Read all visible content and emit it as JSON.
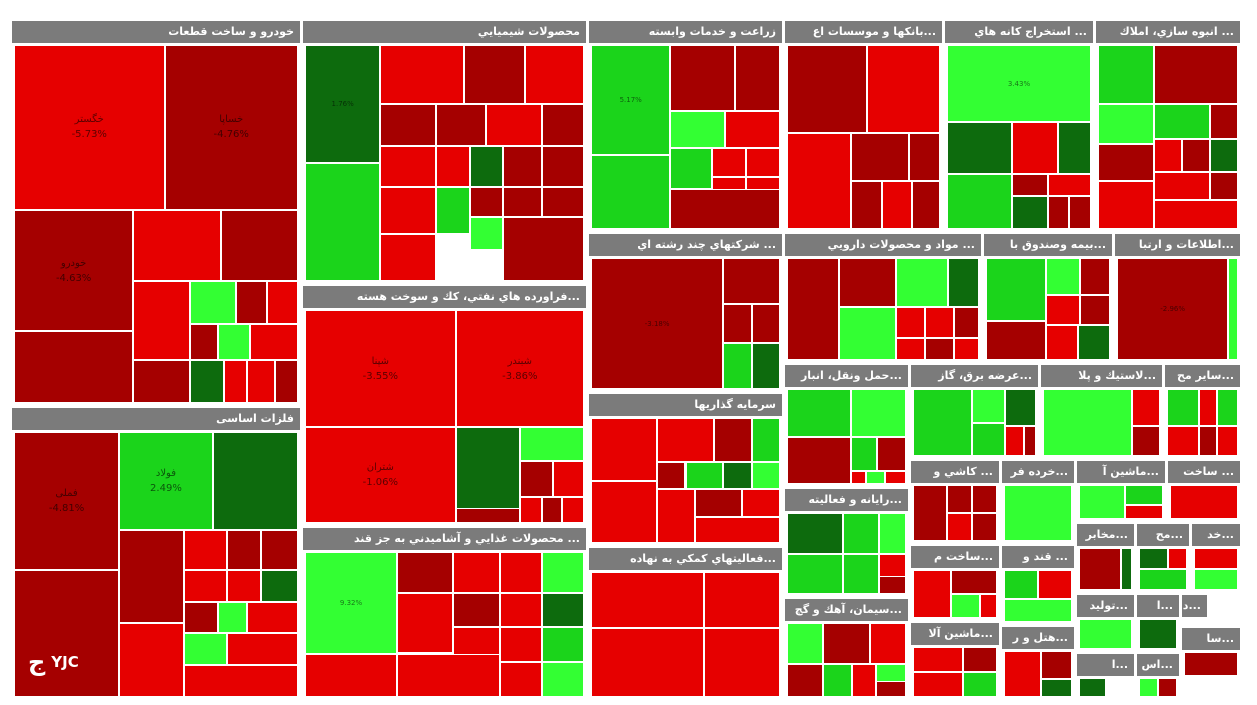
{
  "chart_data": {
    "type": "treemap",
    "colors": {
      "dark_red": "#a50000",
      "red": "#e60000",
      "bright_red": "#ff0000",
      "green": "#1bd41b",
      "bright_green": "#33ff33",
      "dark_green": "#0d6b0d"
    },
    "sectors": [
      {
        "label": "خودرو و ساخت قطعات",
        "cells": [
          {
            "c": "red",
            "label": "خگستر",
            "value": "-5.73%"
          },
          {
            "c": "dark_red",
            "label": "خساپا",
            "value": "-4.76%"
          },
          {
            "c": "dark_red",
            "label": "خودرو",
            "value": "-4.63%"
          },
          {
            "c": "red"
          },
          {
            "c": "dark_red"
          },
          {
            "c": "dark_red"
          },
          {
            "c": "red"
          },
          {
            "c": "bright_green"
          },
          {
            "c": "dark_red"
          },
          {
            "c": "red"
          },
          {
            "c": "dark_red"
          },
          {
            "c": "bright_green"
          },
          {
            "c": "red"
          },
          {
            "c": "dark_red"
          },
          {
            "c": "dark_green"
          },
          {
            "c": "red"
          },
          {
            "c": "red"
          },
          {
            "c": "dark_red"
          }
        ]
      },
      {
        "label": "فلزات اساسی",
        "cells": [
          {
            "c": "dark_red",
            "label": "فملی",
            "value": "-4.81%"
          },
          {
            "c": "green",
            "label": "فولاد",
            "value": "2.49%"
          },
          {
            "c": "dark_green"
          },
          {
            "c": "dark_red"
          },
          {
            "c": "dark_red"
          },
          {
            "c": "red"
          },
          {
            "c": "dark_red"
          },
          {
            "c": "dark_red"
          },
          {
            "c": "red"
          },
          {
            "c": "red"
          },
          {
            "c": "dark_green"
          },
          {
            "c": "dark_red"
          },
          {
            "c": "bright_green"
          },
          {
            "c": "red"
          },
          {
            "c": "red"
          },
          {
            "c": "bright_green"
          },
          {
            "c": "red"
          },
          {
            "c": "red"
          }
        ]
      },
      {
        "label": "محصولات شيميايي",
        "cells": [
          {
            "c": "dark_green",
            "value": "1.76%"
          },
          {
            "c": "red"
          },
          {
            "c": "dark_red"
          },
          {
            "c": "red"
          },
          {
            "c": "green"
          },
          {
            "c": "dark_red"
          },
          {
            "c": "dark_red"
          },
          {
            "c": "red"
          },
          {
            "c": "dark_red"
          },
          {
            "c": "red"
          },
          {
            "c": "red"
          },
          {
            "c": "dark_green"
          },
          {
            "c": "dark_red"
          },
          {
            "c": "dark_red"
          },
          {
            "c": "red"
          },
          {
            "c": "green"
          },
          {
            "c": "dark_red"
          },
          {
            "c": "dark_red"
          },
          {
            "c": "dark_red"
          },
          {
            "c": "red"
          },
          {
            "c": "bright_green"
          },
          {
            "c": "dark_red"
          }
        ]
      },
      {
        "label": "...فراورده هاي نفتي، كك و سوخت هسته",
        "cells": [
          {
            "c": "red",
            "label": "شپنا",
            "value": "-3.55%"
          },
          {
            "c": "red",
            "label": "شبندر",
            "value": "-3.86%"
          },
          {
            "c": "red",
            "label": "شتران",
            "value": "-1.06%"
          },
          {
            "c": "dark_green"
          },
          {
            "c": "bright_green"
          },
          {
            "c": "dark_red"
          },
          {
            "c": "red"
          },
          {
            "c": "red"
          },
          {
            "c": "dark_red"
          },
          {
            "c": "red"
          },
          {
            "c": "dark_red"
          }
        ]
      },
      {
        "label": "... محصولات غذايي و آشاميدني به جز قند",
        "cells": [
          {
            "c": "bright_green",
            "value": "9.32%"
          },
          {
            "c": "dark_red"
          },
          {
            "c": "red"
          },
          {
            "c": "red"
          },
          {
            "c": "bright_green"
          },
          {
            "c": "red"
          },
          {
            "c": "red"
          },
          {
            "c": "dark_red"
          },
          {
            "c": "red"
          },
          {
            "c": "dark_green"
          },
          {
            "c": "green"
          },
          {
            "c": "red"
          },
          {
            "c": "red"
          },
          {
            "c": "bright_green"
          },
          {
            "c": "red"
          },
          {
            "c": "red"
          }
        ]
      },
      {
        "label": "زراعت و خدمات وابسته",
        "cells": [
          {
            "c": "green",
            "value": "5.17%"
          },
          {
            "c": "dark_red"
          },
          {
            "c": "dark_red"
          },
          {
            "c": "bright_green"
          },
          {
            "c": "red"
          },
          {
            "c": "green"
          },
          {
            "c": "green"
          },
          {
            "c": "red"
          },
          {
            "c": "red"
          },
          {
            "c": "red"
          },
          {
            "c": "red"
          },
          {
            "c": "dark_red"
          }
        ]
      },
      {
        "label": "...بانكها و موسسات اع",
        "cells": [
          {
            "c": "dark_red"
          },
          {
            "c": "red"
          },
          {
            "c": "red"
          },
          {
            "c": "dark_red"
          },
          {
            "c": "dark_red"
          },
          {
            "c": "dark_red"
          },
          {
            "c": "red"
          },
          {
            "c": "dark_red"
          }
        ]
      },
      {
        "label": "... استخراج كانه هاي",
        "cells": [
          {
            "c": "bright_green",
            "value": "3.43%"
          },
          {
            "c": "dark_green"
          },
          {
            "c": "red"
          },
          {
            "c": "dark_green"
          },
          {
            "c": "green"
          },
          {
            "c": "dark_red"
          },
          {
            "c": "red"
          },
          {
            "c": "dark_green"
          },
          {
            "c": "dark_red"
          },
          {
            "c": "dark_red"
          }
        ]
      },
      {
        "label": "... انبوه سازي، املاك",
        "cells": [
          {
            "c": "green"
          },
          {
            "c": "dark_red"
          },
          {
            "c": "bright_green"
          },
          {
            "c": "green"
          },
          {
            "c": "dark_red"
          },
          {
            "c": "dark_red"
          },
          {
            "c": "red"
          },
          {
            "c": "dark_red"
          },
          {
            "c": "dark_green"
          },
          {
            "c": "red"
          },
          {
            "c": "red"
          },
          {
            "c": "dark_red"
          },
          {
            "c": "red"
          }
        ]
      },
      {
        "label": "... شركتهاي چند رشته اي",
        "cells": [
          {
            "c": "dark_red",
            "value": "-3.18%"
          },
          {
            "c": "dark_red"
          },
          {
            "c": "dark_red"
          },
          {
            "c": "dark_red"
          },
          {
            "c": "green"
          },
          {
            "c": "dark_green"
          }
        ]
      },
      {
        "label": "سرمايه گذاريها",
        "cells": [
          {
            "c": "red"
          },
          {
            "c": "red"
          },
          {
            "c": "dark_red"
          },
          {
            "c": "green"
          },
          {
            "c": "red"
          },
          {
            "c": "dark_red"
          },
          {
            "c": "green"
          },
          {
            "c": "dark_green"
          },
          {
            "c": "bright_green"
          },
          {
            "c": "red"
          },
          {
            "c": "dark_red"
          },
          {
            "c": "red"
          },
          {
            "c": "red"
          }
        ]
      },
      {
        "label": "...فعاليتهاي كمكي به نهاده",
        "cells": [
          {
            "c": "red"
          },
          {
            "c": "red"
          },
          {
            "c": "red"
          },
          {
            "c": "red"
          }
        ]
      },
      {
        "label": "... مواد و محصولات دارويي",
        "cells": [
          {
            "c": "dark_red"
          },
          {
            "c": "dark_red"
          },
          {
            "c": "bright_green"
          },
          {
            "c": "dark_green"
          },
          {
            "c": "bright_green"
          },
          {
            "c": "red"
          },
          {
            "c": "red"
          },
          {
            "c": "dark_red"
          },
          {
            "c": "red"
          },
          {
            "c": "dark_red"
          },
          {
            "c": "red"
          }
        ]
      },
      {
        "label": "...بيمه وصندوق با",
        "cells": [
          {
            "c": "green"
          },
          {
            "c": "bright_green"
          },
          {
            "c": "dark_red"
          },
          {
            "c": "red"
          },
          {
            "c": "dark_red"
          },
          {
            "c": "dark_red"
          },
          {
            "c": "red"
          },
          {
            "c": "dark_green"
          }
        ]
      },
      {
        "label": "...اطلاعات و ارتبا",
        "cells": [
          {
            "c": "dark_red",
            "value": "-2.96%"
          },
          {
            "c": "bright_green"
          }
        ]
      },
      {
        "label": "...حمل ونقل، انبار",
        "cells": [
          {
            "c": "green"
          },
          {
            "c": "bright_green"
          },
          {
            "c": "dark_red"
          },
          {
            "c": "green"
          },
          {
            "c": "dark_red"
          },
          {
            "c": "red"
          },
          {
            "c": "bright_green"
          },
          {
            "c": "red"
          }
        ]
      },
      {
        "label": "...عرضه برق، گاز",
        "cells": [
          {
            "c": "green"
          },
          {
            "c": "bright_green"
          },
          {
            "c": "green"
          },
          {
            "c": "dark_green"
          },
          {
            "c": "red"
          },
          {
            "c": "dark_red"
          }
        ]
      },
      {
        "label": "...لاستيك و پلا",
        "cells": [
          {
            "c": "bright_green"
          },
          {
            "c": "red"
          },
          {
            "c": "dark_red"
          }
        ]
      },
      {
        "label": "...ساير مح",
        "cells": [
          {
            "c": "green"
          },
          {
            "c": "red"
          },
          {
            "c": "green"
          },
          {
            "c": "red"
          },
          {
            "c": "dark_red"
          },
          {
            "c": "red"
          }
        ]
      },
      {
        "label": "...رايانه و فعاليته",
        "cells": [
          {
            "c": "dark_green"
          },
          {
            "c": "green"
          },
          {
            "c": "bright_green"
          },
          {
            "c": "green"
          },
          {
            "c": "green"
          },
          {
            "c": "red"
          },
          {
            "c": "dark_red"
          }
        ]
      },
      {
        "label": "... كاشي و",
        "cells": [
          {
            "c": "dark_red"
          },
          {
            "c": "dark_red"
          },
          {
            "c": "dark_red"
          },
          {
            "c": "red"
          },
          {
            "c": "dark_red"
          }
        ]
      },
      {
        "label": "...خرده فر",
        "cells": [
          {
            "c": "bright_green"
          }
        ]
      },
      {
        "label": "...ماشين آ",
        "cells": [
          {
            "c": "bright_green"
          },
          {
            "c": "green"
          },
          {
            "c": "red"
          }
        ]
      },
      {
        "label": "... ساخت",
        "cells": [
          {
            "c": "red"
          }
        ]
      },
      {
        "label": "...سيمان، آهك و گچ",
        "cells": [
          {
            "c": "bright_green"
          },
          {
            "c": "dark_red"
          },
          {
            "c": "red"
          },
          {
            "c": "dark_red"
          },
          {
            "c": "green"
          },
          {
            "c": "red"
          },
          {
            "c": "bright_green"
          },
          {
            "c": "dark_red"
          }
        ]
      },
      {
        "label": "...ساخت م",
        "cells": [
          {
            "c": "red"
          },
          {
            "c": "dark_red"
          },
          {
            "c": "bright_green"
          },
          {
            "c": "red"
          }
        ]
      },
      {
        "label": "... قند و",
        "cells": [
          {
            "c": "green"
          },
          {
            "c": "red"
          },
          {
            "c": "bright_green"
          }
        ]
      },
      {
        "label": "...مخابر",
        "cells": [
          {
            "c": "dark_red"
          },
          {
            "c": "dark_green"
          }
        ]
      },
      {
        "label": "...مح",
        "cells": [
          {
            "c": "dark_green"
          },
          {
            "c": "red"
          },
          {
            "c": "green"
          }
        ]
      },
      {
        "label": "...خد",
        "cells": [
          {
            "c": "red"
          },
          {
            "c": "bright_green"
          }
        ]
      },
      {
        "label": "...ماشين آلا",
        "cells": [
          {
            "c": "red"
          },
          {
            "c": "dark_red"
          },
          {
            "c": "red"
          },
          {
            "c": "green"
          }
        ]
      },
      {
        "label": "...هتل و ر",
        "cells": [
          {
            "c": "red"
          },
          {
            "c": "dark_red"
          },
          {
            "c": "dark_green"
          }
        ]
      },
      {
        "label": "...توليد",
        "cells": [
          {
            "c": "bright_green"
          }
        ]
      },
      {
        "label": "...ا",
        "cells": [
          {
            "c": "dark_green"
          }
        ]
      },
      {
        "label": "...دباغ",
        "cells": [
          {
            "c": "dark_red"
          },
          {
            "c": "green"
          },
          {
            "c": "red"
          }
        ]
      },
      {
        "label": "...ا",
        "cells": [
          {
            "c": "dark_green"
          }
        ]
      },
      {
        "label": "...اس",
        "cells": [
          {
            "c": "bright_green"
          },
          {
            "c": "dark_red"
          }
        ]
      },
      {
        "label": "...سا",
        "cells": [
          {
            "c": "dark_red"
          },
          {
            "c": "green"
          }
        ]
      },
      {
        "label": "",
        "cells": [
          {
            "c": "dark_red"
          }
        ]
      }
    ]
  },
  "watermark": {
    "brand": "YJC",
    "glyph": "ج"
  }
}
